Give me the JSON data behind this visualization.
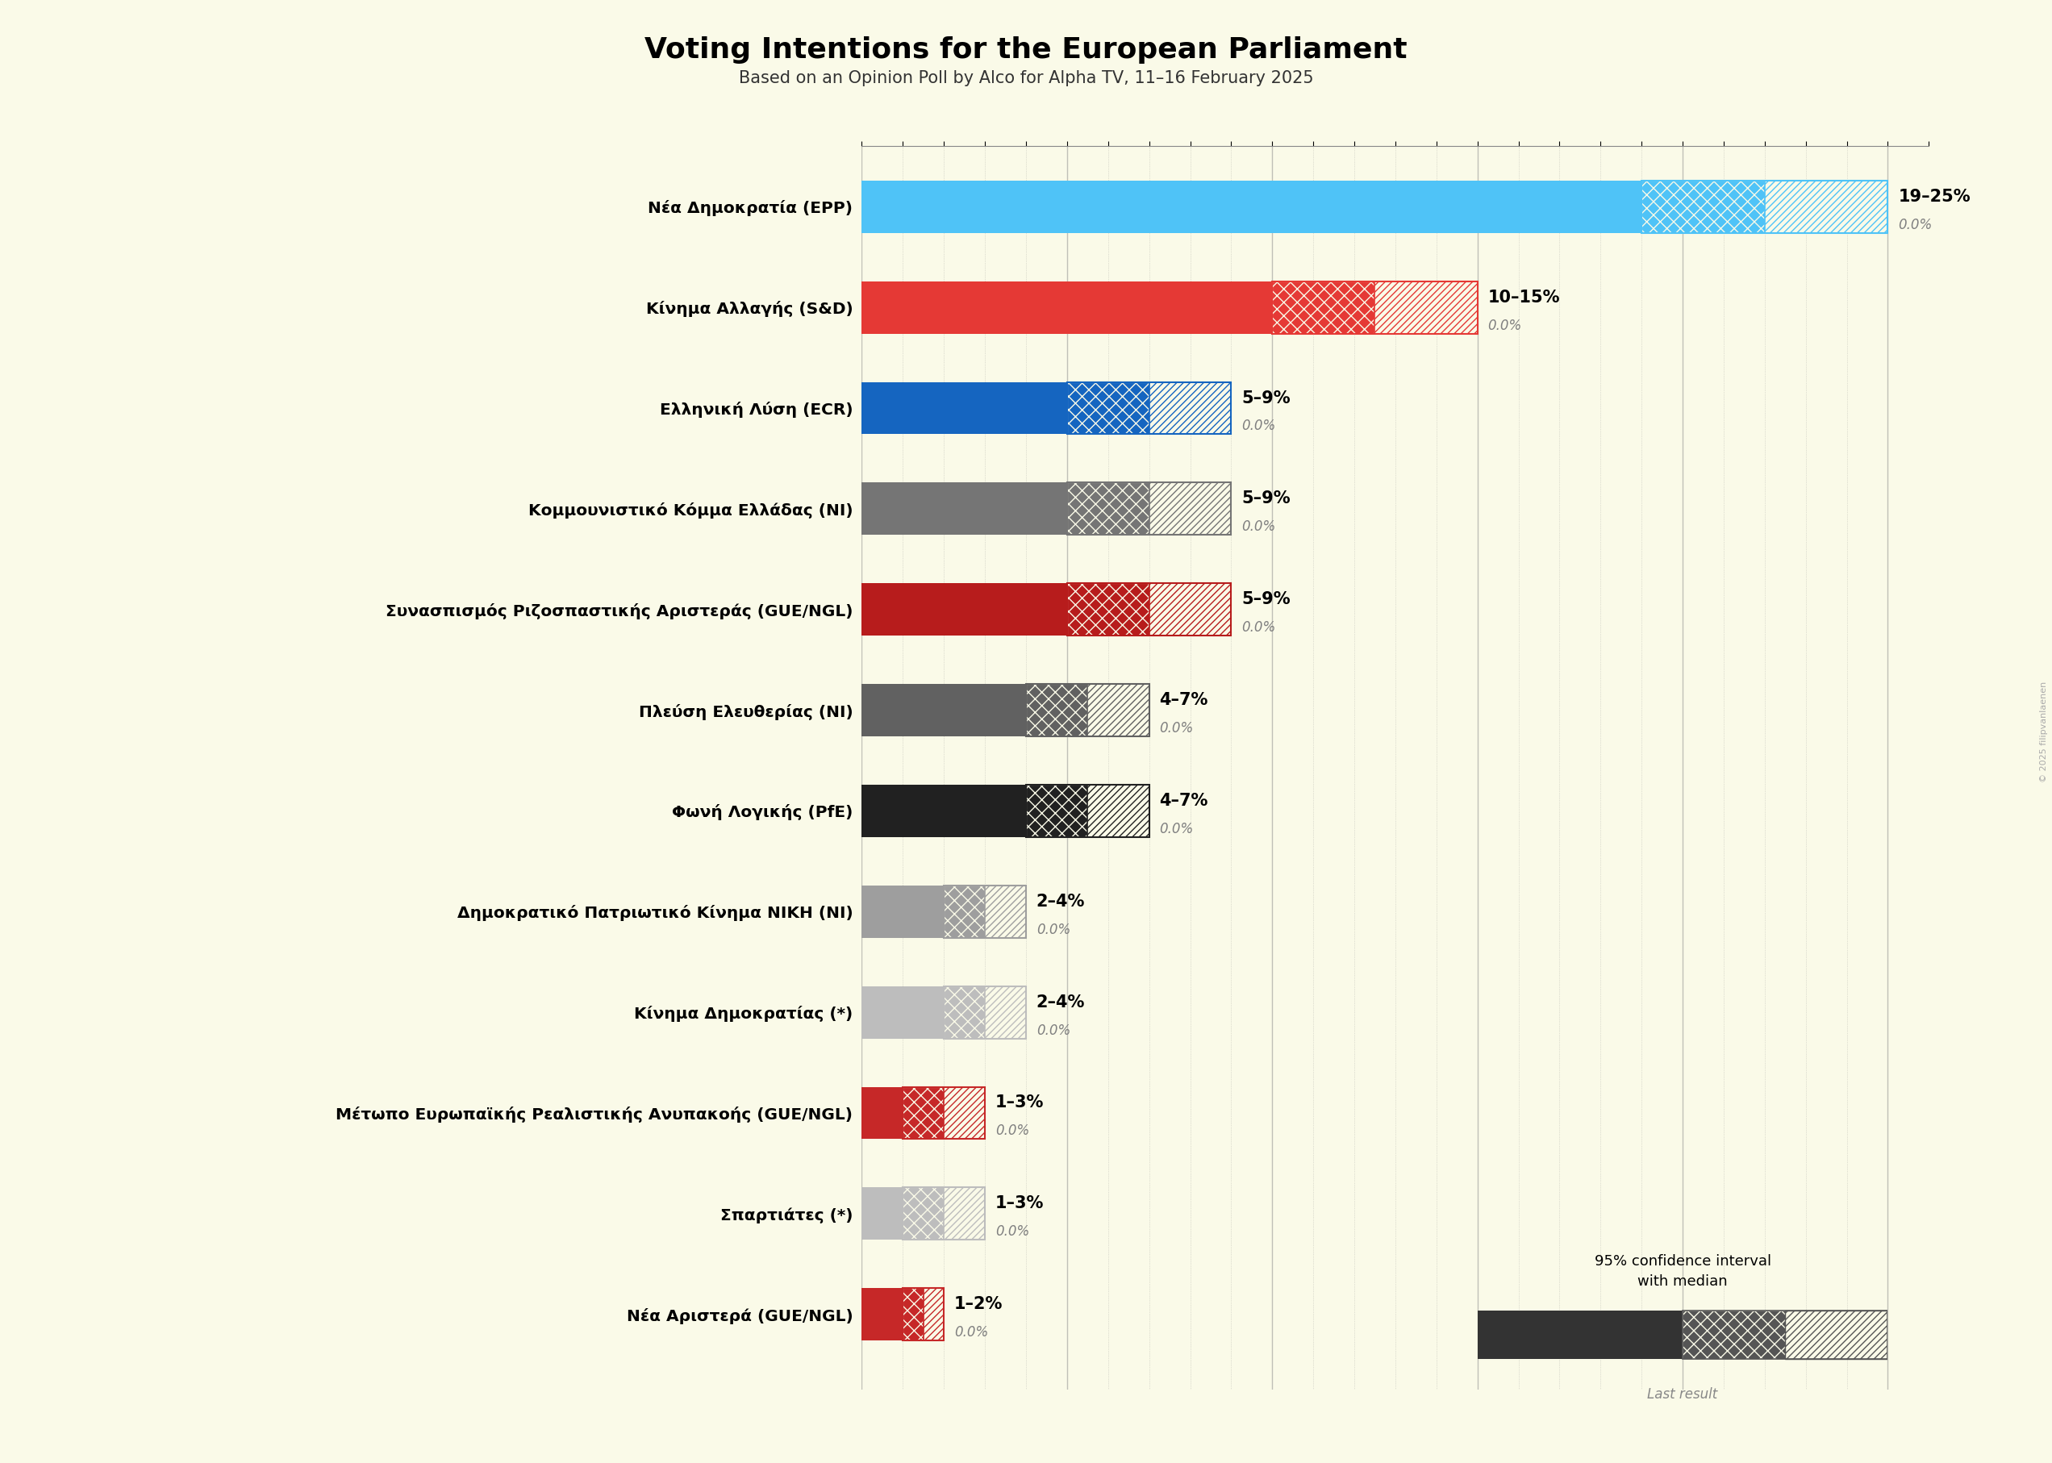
{
  "title": "Voting Intentions for the European Parliament",
  "subtitle": "Based on an Opinion Poll by Alco for Alpha TV, 11–16 February 2025",
  "background_color": "#FAFAE8",
  "parties": [
    {
      "name": "Nέα Δημοκρατία (EPP)",
      "low": 19,
      "high": 25,
      "color": "#4fc3f7",
      "label": "19–25%",
      "last": 0.0
    },
    {
      "name": "Κίνημα Αλλαγής (S&D)",
      "low": 10,
      "high": 15,
      "color": "#e53935",
      "label": "10–15%",
      "last": 0.0
    },
    {
      "name": "Ελληνική Λύση (ECR)",
      "low": 5,
      "high": 9,
      "color": "#1565c0",
      "label": "5–9%",
      "last": 0.0
    },
    {
      "name": "Κομμουνιστικό Κόμμα Ελλάδας (NI)",
      "low": 5,
      "high": 9,
      "color": "#757575",
      "label": "5–9%",
      "last": 0.0
    },
    {
      "name": "Συνασπισμός Ριζοσπαστικής Αριστεράς (GUE/NGL)",
      "low": 5,
      "high": 9,
      "color": "#b71c1c",
      "label": "5–9%",
      "last": 0.0
    },
    {
      "name": "Πλεύση Ελευθερίας (NI)",
      "low": 4,
      "high": 7,
      "color": "#616161",
      "label": "4–7%",
      "last": 0.0
    },
    {
      "name": "Φωνή Λογικής (PfE)",
      "low": 4,
      "high": 7,
      "color": "#212121",
      "label": "4–7%",
      "last": 0.0
    },
    {
      "name": "Δημοκρατικό Πατριωτικό Κίνημα ΝΙΚΗ (NI)",
      "low": 2,
      "high": 4,
      "color": "#9e9e9e",
      "label": "2–4%",
      "last": 0.0
    },
    {
      "name": "Κίνημα Δημοκρατίας (*)",
      "low": 2,
      "high": 4,
      "color": "#bdbdbd",
      "label": "2–4%",
      "last": 0.0
    },
    {
      "name": "Μέτωπο Ευρωπαϊκής Ρεαλιστικής Ανυπακοής (GUE/NGL)",
      "low": 1,
      "high": 3,
      "color": "#c62828",
      "label": "1–3%",
      "last": 0.0
    },
    {
      "name": "Σπαρτιάτες (*)",
      "low": 1,
      "high": 3,
      "color": "#bdbdbd",
      "label": "1–3%",
      "last": 0.0
    },
    {
      "name": "Νέα Αριστερά (GUE/NGL)",
      "low": 1,
      "high": 2,
      "color": "#c62828",
      "label": "1–2%",
      "last": 0.0
    }
  ],
  "xmax": 26,
  "legend_text1": "95% confidence interval",
  "legend_text2": "with median",
  "legend_text3": "Last result",
  "copyright": "© 2025 filipvanlaenen"
}
